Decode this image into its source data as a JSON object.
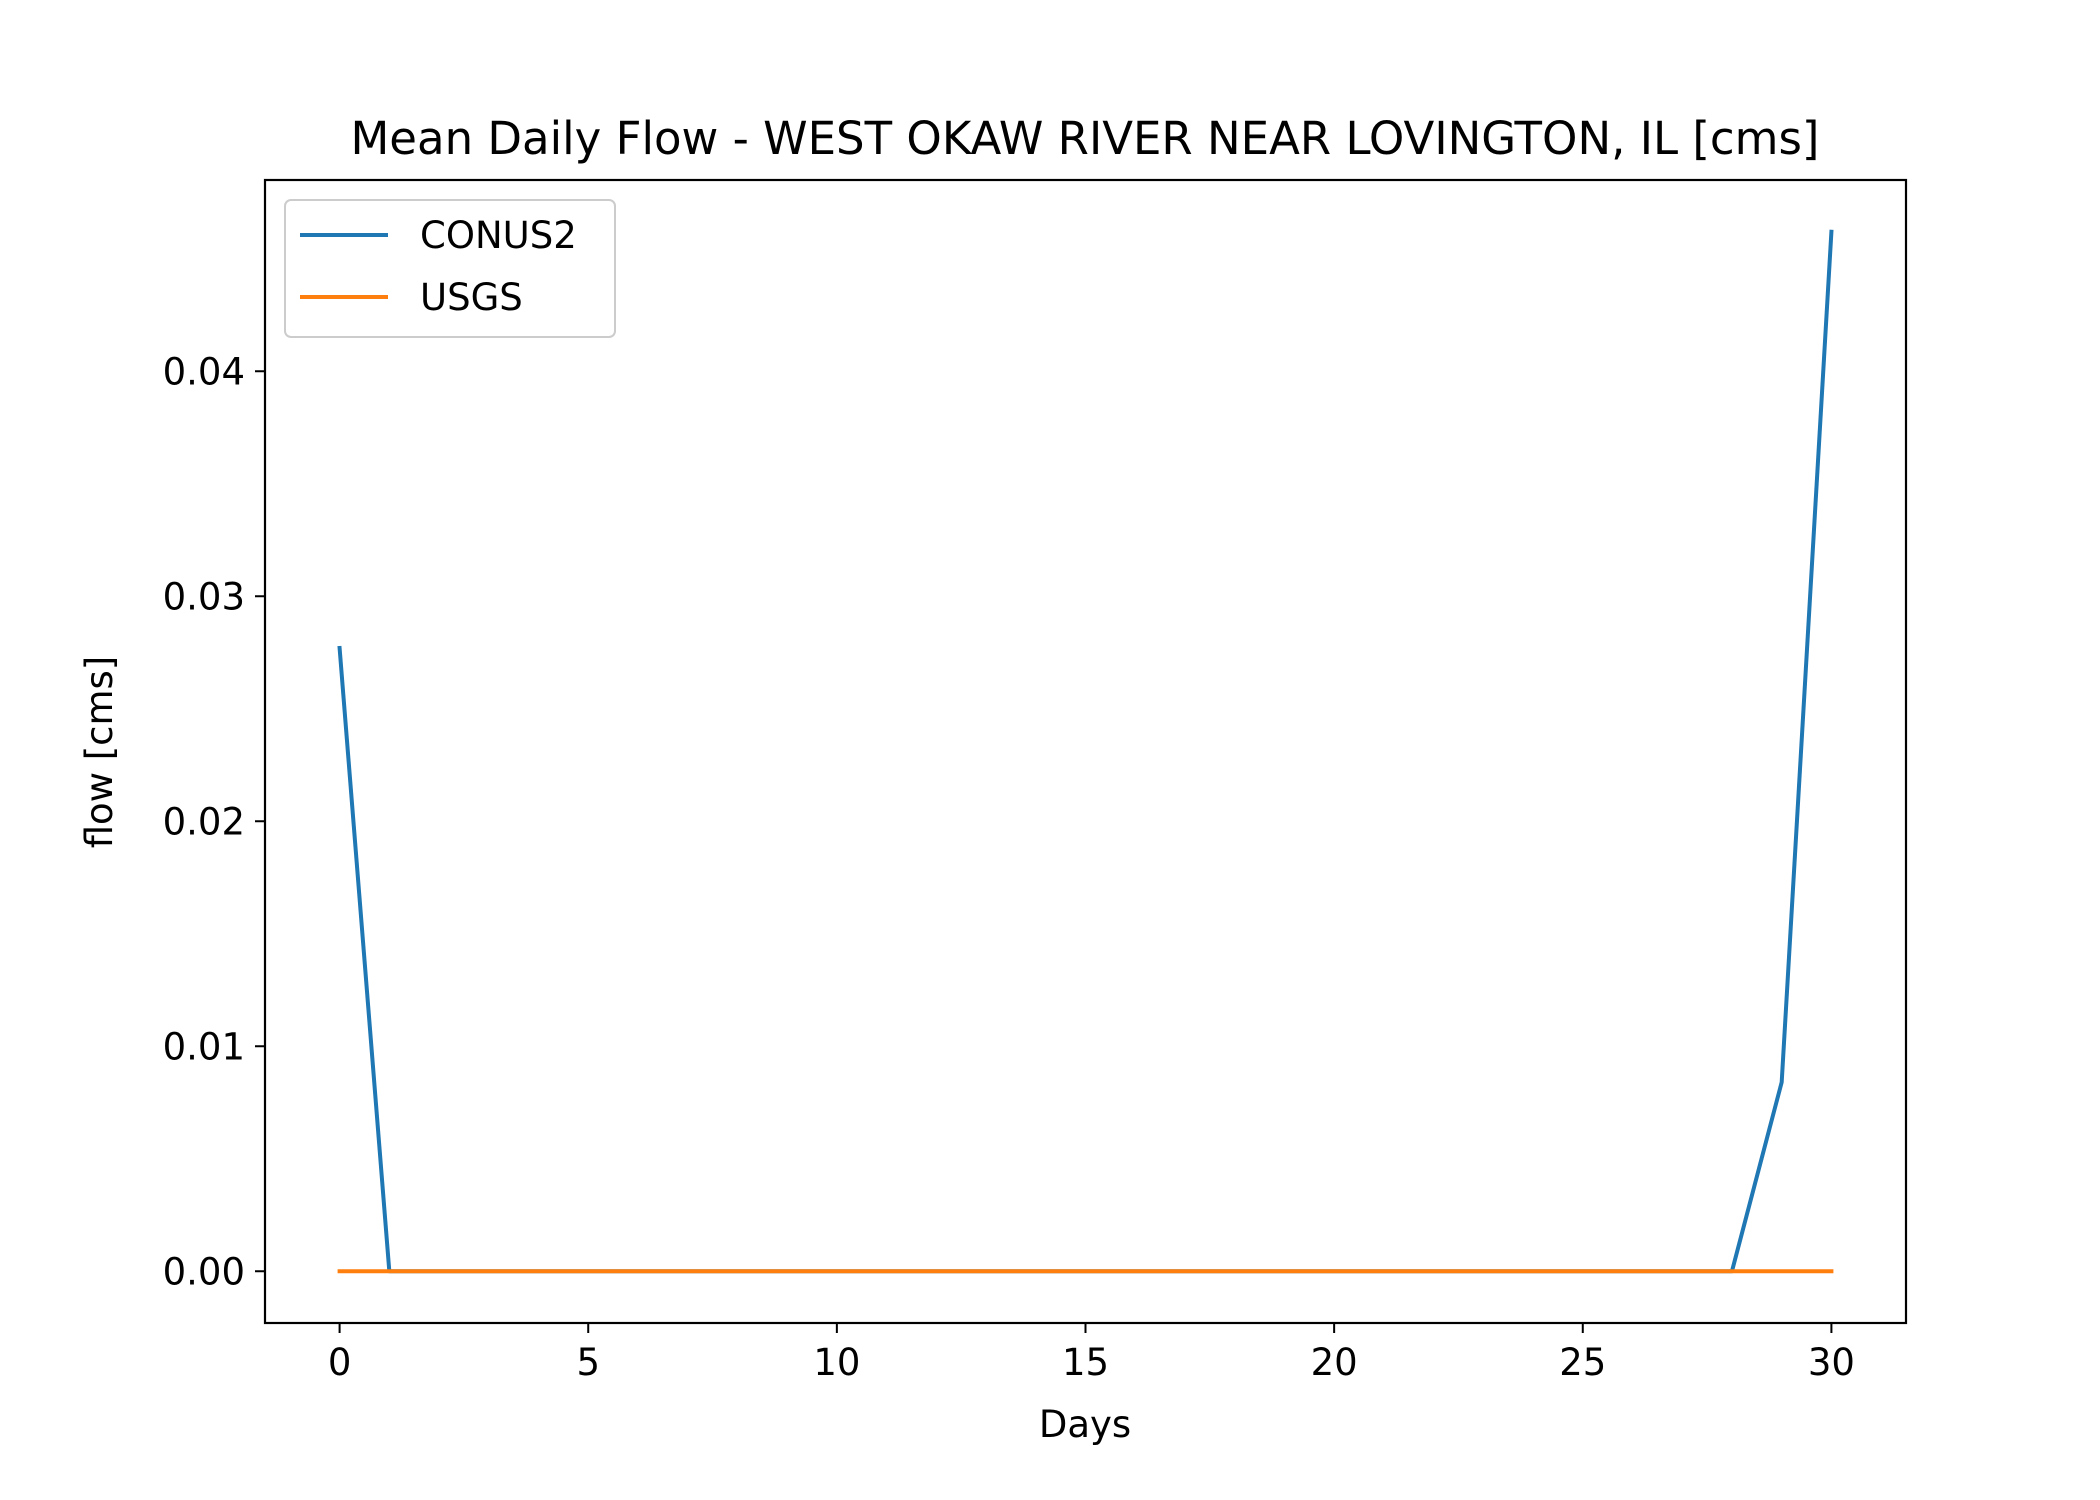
{
  "chart_data": {
    "type": "line",
    "title": "Mean Daily Flow - WEST OKAW RIVER NEAR LOVINGTON, IL [cms]",
    "xlabel": "Days",
    "ylabel": "flow [cms]",
    "xlim": [
      -1.5,
      31.5
    ],
    "ylim": [
      -0.0023,
      0.0485
    ],
    "xticks": [
      0,
      5,
      10,
      15,
      20,
      25,
      30
    ],
    "xtick_labels": [
      "0",
      "5",
      "10",
      "15",
      "20",
      "25",
      "30"
    ],
    "yticks": [
      0.0,
      0.01,
      0.02,
      0.03,
      0.04
    ],
    "ytick_labels": [
      "0.00",
      "0.01",
      "0.02",
      "0.03",
      "0.04"
    ],
    "grid": false,
    "legend_position": "top-left",
    "series": [
      {
        "name": "CONUS2",
        "color": "#1f77b4",
        "x": [
          0,
          1,
          2,
          3,
          4,
          5,
          6,
          7,
          8,
          9,
          10,
          11,
          12,
          13,
          14,
          15,
          16,
          17,
          18,
          19,
          20,
          21,
          22,
          23,
          24,
          25,
          26,
          27,
          28,
          29,
          30
        ],
        "y": [
          0.0277,
          0.0,
          0.0,
          0.0,
          0.0,
          0.0,
          0.0,
          0.0,
          0.0,
          0.0,
          0.0,
          0.0,
          0.0,
          0.0,
          0.0,
          0.0,
          0.0,
          0.0,
          0.0,
          0.0,
          0.0,
          0.0,
          0.0,
          0.0,
          0.0,
          0.0,
          0.0,
          0.0,
          0.0,
          0.0084,
          0.0462
        ]
      },
      {
        "name": "USGS",
        "color": "#ff7f0e",
        "x": [
          0,
          1,
          2,
          3,
          4,
          5,
          6,
          7,
          8,
          9,
          10,
          11,
          12,
          13,
          14,
          15,
          16,
          17,
          18,
          19,
          20,
          21,
          22,
          23,
          24,
          25,
          26,
          27,
          28,
          29,
          30
        ],
        "y": [
          0.0,
          0.0,
          0.0,
          0.0,
          0.0,
          0.0,
          0.0,
          0.0,
          0.0,
          0.0,
          0.0,
          0.0,
          0.0,
          0.0,
          0.0,
          0.0,
          0.0,
          0.0,
          0.0,
          0.0,
          0.0,
          0.0,
          0.0,
          0.0,
          0.0,
          0.0,
          0.0,
          0.0,
          0.0,
          0.0,
          0.0
        ]
      }
    ]
  }
}
